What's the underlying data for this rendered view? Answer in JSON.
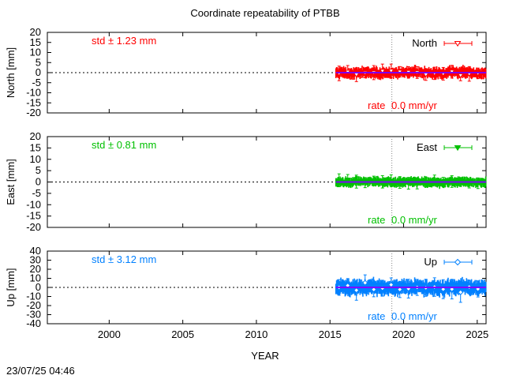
{
  "chart_data": {
    "type": "scatter",
    "title": "Coordinate repeatability of PTBB",
    "xlabel": "YEAR",
    "xlim": [
      1995.8,
      2025.6
    ],
    "x_ticks": [
      2000,
      2005,
      2010,
      2015,
      2020,
      2025
    ],
    "x_tick_labels": [
      "2000",
      "2005",
      "2010",
      "2015",
      "2020",
      "2025"
    ],
    "reference_year": 2019.2,
    "data_start_year": 2015.4,
    "data_end_year": 2025.6,
    "timestamp": "23/07/25 04:46",
    "panels": [
      {
        "key": "north",
        "ylabel": "North [mm]",
        "ylim": [
          -20,
          20
        ],
        "y_ticks": [
          20,
          15,
          10,
          5,
          0,
          -5,
          -10,
          -15,
          -20
        ],
        "y_tick_labels": [
          "20",
          "15",
          "10",
          "5",
          "0",
          "-5",
          "-10",
          "-15",
          "-20"
        ],
        "legend": "North",
        "std_text": "std ± 1.23 mm",
        "rate_label": "rate",
        "rate_text": "0.0 mm/yr",
        "std_mm": 1.23,
        "rate_mm_per_yr": 0.0,
        "color": "#ff0000",
        "marker": "triangle-down-open",
        "error_mm": 2.3
      },
      {
        "key": "east",
        "ylabel": "East [mm]",
        "ylim": [
          -20,
          20
        ],
        "y_ticks": [
          20,
          15,
          10,
          5,
          0,
          -5,
          -10,
          -15,
          -20
        ],
        "y_tick_labels": [
          "20",
          "15",
          "10",
          "5",
          "0",
          "-5",
          "-10",
          "-15",
          "-20"
        ],
        "legend": "East",
        "std_text": "std ± 0.81 mm",
        "rate_label": "rate",
        "rate_text": "0.0 mm/yr",
        "std_mm": 0.81,
        "rate_mm_per_yr": 0.0,
        "color": "#00c000",
        "marker": "triangle-down-filled",
        "error_mm": 1.8
      },
      {
        "key": "up",
        "ylabel": "Up [mm]",
        "ylim": [
          -40,
          40
        ],
        "y_ticks": [
          40,
          30,
          20,
          10,
          0,
          -10,
          -20,
          -30,
          -40
        ],
        "y_tick_labels": [
          "40",
          "30",
          "20",
          "10",
          "0",
          "-10",
          "-20",
          "-30",
          "-40"
        ],
        "legend": "Up",
        "std_text": "std ± 3.12 mm",
        "rate_label": "rate",
        "rate_text": "0.0 mm/yr",
        "std_mm": 3.12,
        "rate_mm_per_yr": 0.0,
        "color": "#0080ff",
        "marker": "diamond-open",
        "error_mm": 7
      }
    ],
    "fit_line_color": "#8000ff"
  }
}
